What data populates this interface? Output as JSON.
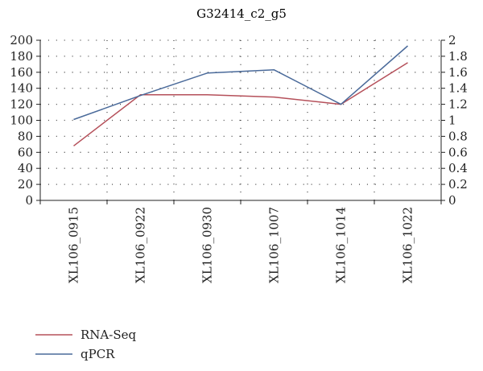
{
  "chart_data": {
    "type": "line",
    "title": "G32414_c2_g5",
    "categories": [
      "XL106_0915",
      "XL106_0922",
      "XL106_0930",
      "XL106_1007",
      "XL106_1014",
      "XL106_1022"
    ],
    "y_left": {
      "min": 0,
      "max": 200,
      "step": 20,
      "ticks": [
        "0",
        "20",
        "40",
        "60",
        "80",
        "100",
        "120",
        "140",
        "160",
        "180",
        "200"
      ]
    },
    "y_right": {
      "min": 0,
      "max": 2,
      "step": 0.2,
      "ticks": [
        "0",
        "0.2",
        "0.4",
        "0.6",
        "0.8",
        "1",
        "1.2",
        "1.4",
        "1.6",
        "1.8",
        "2"
      ]
    },
    "grid": true,
    "legend_position": "bottom-left",
    "series": [
      {
        "name": "RNA-Seq",
        "axis": "left",
        "color": "#b5505a",
        "values": [
          68,
          132,
          132,
          129,
          120,
          172
        ]
      },
      {
        "name": "qPCR",
        "axis": "right",
        "color": "#4a6a9a",
        "values": [
          1.01,
          1.31,
          1.59,
          1.63,
          1.2,
          1.93
        ]
      }
    ]
  }
}
